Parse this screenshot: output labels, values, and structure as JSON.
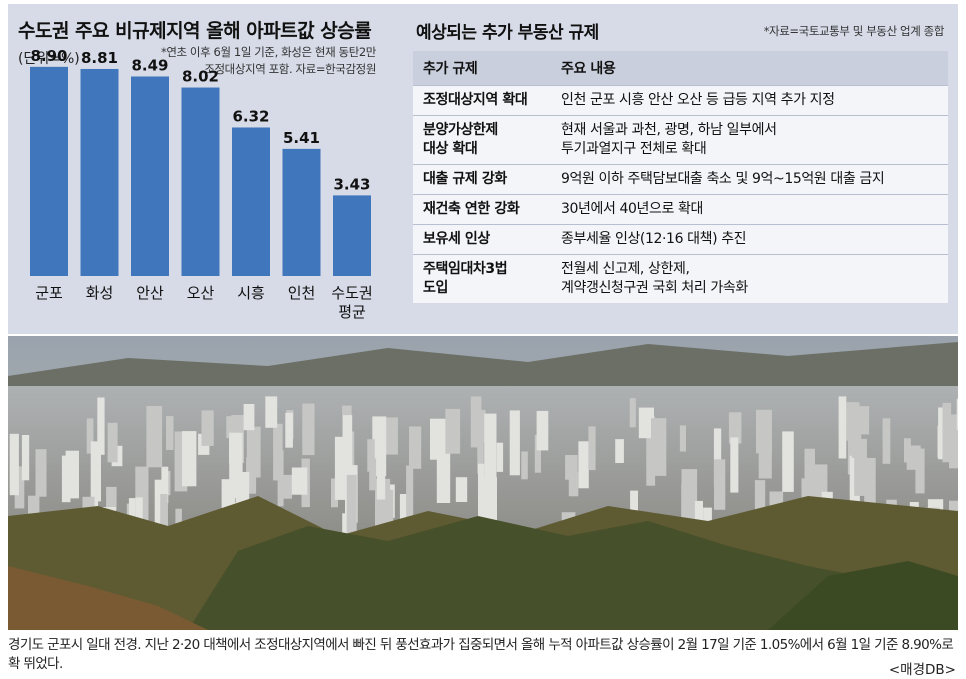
{
  "chart_data": {
    "type": "bar",
    "title": "수도권 주요 비규제지역 올해 아파트값 상승률",
    "unit_label": "(단위=%)",
    "note": [
      "*연초 이후 6월 1일 기준, 화성은 현재 동탄2만",
      "조정대상지역 포함. 자료=한국감정원"
    ],
    "categories": [
      [
        "군포"
      ],
      [
        "화성"
      ],
      [
        "안산"
      ],
      [
        "오산"
      ],
      [
        "시흥"
      ],
      [
        "인천"
      ],
      [
        "수도권",
        "평균"
      ]
    ],
    "values": [
      8.9,
      8.81,
      8.49,
      8.02,
      6.32,
      5.41,
      3.43
    ],
    "value_labels": [
      "8.90",
      "8.81",
      "8.49",
      "8.02",
      "6.32",
      "5.41",
      "3.43"
    ],
    "ylim": [
      0,
      10
    ],
    "bar_color": "#3f76bc",
    "grid": false
  },
  "table": {
    "title": "예상되는 추가 부동산 규제",
    "source": "*자료=국토교통부 및 부동산 업계 종합",
    "headers": [
      "추가 규제",
      "주요 내용"
    ],
    "rows": [
      {
        "k": [
          "조정대상지역 확대"
        ],
        "v": [
          "인천 군포 시흥 안산 오산 등 급등 지역 추가 지정"
        ]
      },
      {
        "k": [
          "분양가상한제",
          "대상 확대"
        ],
        "v": [
          "현재 서울과 과천, 광명, 하남 일부에서",
          "투기과열지구 전체로 확대"
        ]
      },
      {
        "k": [
          "대출 규제 강화"
        ],
        "v": [
          "9억원 이하 주택담보대출 축소 및 9억~15억원 대출 금지"
        ]
      },
      {
        "k": [
          "재건축 연한 강화"
        ],
        "v": [
          "30년에서 40년으로 확대"
        ]
      },
      {
        "k": [
          "보유세 인상"
        ],
        "v": [
          "종부세율 인상(12·16 대책) 추진"
        ]
      },
      {
        "k": [
          "주택임대차3법",
          "도입"
        ],
        "v": [
          "전월세 신고제, 상한제,",
          "계약갱신청구권 국회 처리 가속화"
        ]
      }
    ]
  },
  "caption": {
    "text": "경기도 군포시 일대 전경. 지난 2·20 대책에서 조정대상지역에서 빠진 뒤 풍선효과가 집중되면서 올해 누적 아파트값 상승률이 2월 17일 기준 1.05%에서 6월 1일 기준 8.90%로 확 뛰었다.",
    "credit": "<매경DB>"
  }
}
